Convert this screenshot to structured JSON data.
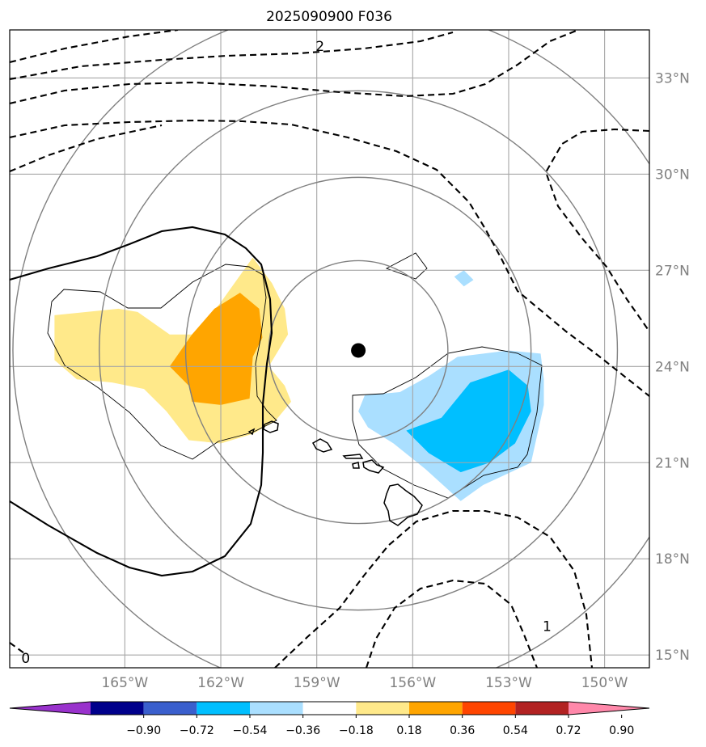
{
  "chart_data": {
    "type": "map",
    "title": "2025090900 F036",
    "projection": "PlateCarree",
    "extent": {
      "lon": [
        -168.6,
        -148.6
      ],
      "lat": [
        14.6,
        34.5
      ]
    },
    "lon_ticks": [
      -165,
      -162,
      -159,
      -156,
      -153,
      -150
    ],
    "lat_ticks": [
      15,
      18,
      21,
      24,
      27,
      30,
      33
    ],
    "lon_tick_labels": [
      "165°W",
      "162°W",
      "159°W",
      "156°W",
      "153°W",
      "150°W"
    ],
    "lat_tick_labels": [
      "15°N",
      "18°N",
      "21°N",
      "24°N",
      "27°N",
      "30°N",
      "33°N"
    ],
    "gridlines": true,
    "center_marker": {
      "lon": -157.7,
      "lat": 24.5
    },
    "range_rings": {
      "center": {
        "lon": -157.7,
        "lat": 24.5
      },
      "radii_deg": [
        2.8,
        5.4,
        8.1,
        10.8
      ],
      "color": "#808080"
    },
    "contour_labels": [
      {
        "text": "2",
        "lon": -158.9,
        "lat": 34.0
      },
      {
        "text": "1",
        "lon": -151.8,
        "lat": 15.9
      },
      {
        "text": "0",
        "lon": -168.1,
        "lat": 14.9
      }
    ],
    "shaded_regions": [
      {
        "level": "0.18 to 0.36",
        "color": "#ffe98a",
        "polygon": [
          [
            -167.2,
            25.6
          ],
          [
            -165.2,
            25.8
          ],
          [
            -164.6,
            25.7
          ],
          [
            -163.6,
            25.0
          ],
          [
            -162.8,
            25.0
          ],
          [
            -162.0,
            26.0
          ],
          [
            -161.0,
            27.4
          ],
          [
            -160.4,
            26.6
          ],
          [
            -160.0,
            25.8
          ],
          [
            -159.9,
            25.0
          ],
          [
            -160.5,
            24.0
          ],
          [
            -160.0,
            23.4
          ],
          [
            -159.8,
            22.9
          ],
          [
            -160.3,
            22.3
          ],
          [
            -161.0,
            21.9
          ],
          [
            -162.0,
            21.6
          ],
          [
            -163.0,
            21.7
          ],
          [
            -163.7,
            22.6
          ],
          [
            -164.4,
            23.3
          ],
          [
            -165.4,
            23.5
          ],
          [
            -166.5,
            23.6
          ],
          [
            -167.2,
            24.2
          ]
        ]
      },
      {
        "level": "0.36 to 0.54",
        "color": "#ffa500",
        "polygon": [
          [
            -163.6,
            24.0
          ],
          [
            -162.9,
            25.0
          ],
          [
            -162.2,
            25.8
          ],
          [
            -161.4,
            26.3
          ],
          [
            -160.8,
            25.8
          ],
          [
            -160.7,
            24.9
          ],
          [
            -161.0,
            24.3
          ],
          [
            -161.1,
            23.0
          ],
          [
            -162.0,
            22.8
          ],
          [
            -162.9,
            22.9
          ],
          [
            -163.0,
            23.4
          ]
        ]
      },
      {
        "level": "-0.36 to -0.18",
        "color": "#aadfff",
        "polygon": [
          [
            -156.4,
            23.2
          ],
          [
            -155.5,
            23.7
          ],
          [
            -154.6,
            24.3
          ],
          [
            -153.0,
            24.5
          ],
          [
            -152.0,
            24.4
          ],
          [
            -151.9,
            23.6
          ],
          [
            -151.9,
            22.8
          ],
          [
            -152.3,
            21.0
          ],
          [
            -153.8,
            20.3
          ],
          [
            -154.5,
            19.8
          ],
          [
            -155.6,
            20.8
          ],
          [
            -156.6,
            21.6
          ],
          [
            -157.4,
            22.1
          ],
          [
            -157.7,
            22.6
          ],
          [
            -157.5,
            23.1
          ]
        ]
      },
      {
        "level": "-0.54 to -0.36",
        "color": "#00bfff",
        "polygon": [
          [
            -155.1,
            22.4
          ],
          [
            -154.2,
            23.5
          ],
          [
            -153.0,
            23.9
          ],
          [
            -152.4,
            23.4
          ],
          [
            -152.3,
            22.6
          ],
          [
            -152.8,
            21.6
          ],
          [
            -153.6,
            21.0
          ],
          [
            -154.5,
            20.7
          ],
          [
            -155.5,
            21.3
          ],
          [
            -156.2,
            22.0
          ]
        ]
      },
      {
        "level": "-0.36 to -0.18",
        "color": "#aadfff",
        "polygon": [
          [
            -154.7,
            26.8
          ],
          [
            -154.4,
            27.0
          ],
          [
            -154.1,
            26.7
          ],
          [
            -154.4,
            26.5
          ]
        ]
      }
    ],
    "colorbar": {
      "levels": [
        -0.9,
        -0.72,
        -0.54,
        -0.36,
        -0.18,
        0.18,
        0.36,
        0.54,
        0.72,
        0.9
      ],
      "tick_labels": [
        "−0.90",
        "−0.72",
        "−0.54",
        "−0.36",
        "−0.18",
        "0.18",
        "0.36",
        "0.54",
        "0.72",
        "0.90"
      ],
      "colors": [
        "#9932cc",
        "#00008b",
        "#3a5fcd",
        "#00bfff",
        "#aadfff",
        "#ffffff",
        "#ffe98a",
        "#ffa500",
        "#ff4500",
        "#b22222",
        "#ff88aa"
      ],
      "extend": "both"
    }
  }
}
